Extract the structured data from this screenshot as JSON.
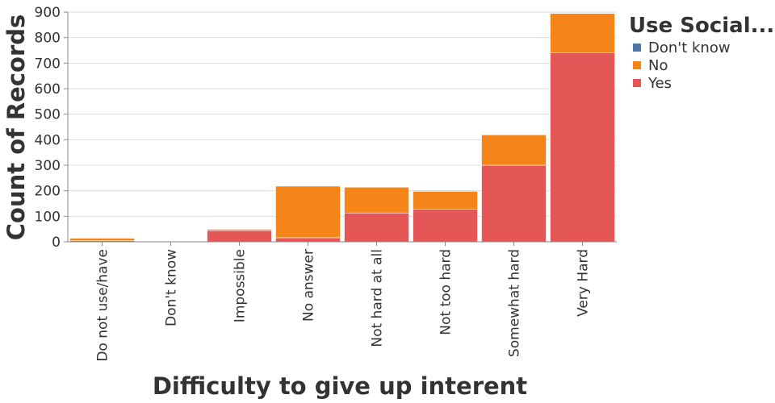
{
  "chart_data": {
    "type": "bar",
    "stacked": true,
    "xlabel": "Difficulty to give up interent",
    "ylabel": "Count of Records",
    "ylim": [
      0,
      900
    ],
    "yticks": [
      0,
      100,
      200,
      300,
      400,
      500,
      600,
      700,
      800,
      900
    ],
    "categories": [
      "Do not use/have",
      "Don't know",
      "Impossible",
      "No answer",
      "Not hard at all",
      "Not too hard",
      "Somewhat hard",
      "Very Hard"
    ],
    "series": [
      {
        "name": "Yes",
        "color": "#e45756",
        "values": [
          4,
          3,
          44,
          16,
          113,
          128,
          300,
          740
        ]
      },
      {
        "name": "No",
        "color": "#f58518",
        "values": [
          10,
          1,
          5,
          202,
          101,
          70,
          119,
          155
        ]
      },
      {
        "name": "Don't know",
        "color": "#4c78a8",
        "values": [
          0,
          0,
          0,
          0,
          0,
          0,
          0,
          1
        ]
      }
    ],
    "legend": {
      "title": "Use Social...",
      "position": "top-right",
      "entries": [
        "Don't know",
        "No",
        "Yes"
      ]
    },
    "grid": true
  }
}
